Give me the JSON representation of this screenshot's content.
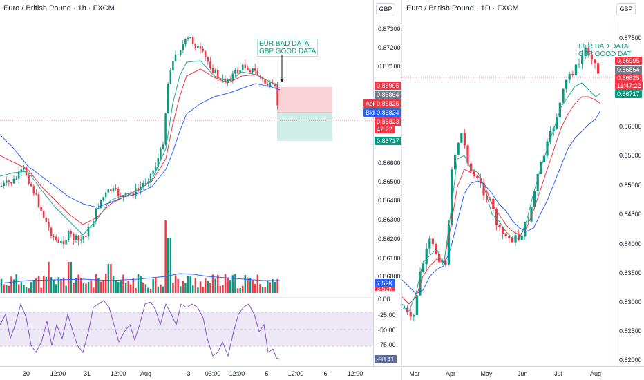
{
  "left_pane": {
    "title": "Euro / British Pound · 1h · FXCM",
    "currency": "GBP",
    "price_ticks": [
      "0.87300",
      "0.87200",
      "0.87100",
      "0.86600",
      "0.86500",
      "0.86400",
      "0.86300",
      "0.86200",
      "0.86100",
      "0.86000"
    ],
    "osc_ticks": [
      "0.00",
      "-25.00",
      "-50.00",
      "-75.00"
    ],
    "time_ticks": [
      "30",
      "12:00",
      "31",
      "12:00",
      "Aug",
      "3",
      "03:00",
      "12:00",
      "5",
      "12:00",
      "6",
      "12:00"
    ],
    "tags": {
      "target": "0.86995",
      "last_close": "0.86864",
      "ask_label": "Ask",
      "ask": "0.86826",
      "bid_label": "Bid",
      "bid": "0.86824",
      "current": "0.86823",
      "countdown": "47:22",
      "stop": "0.86717",
      "volume_a": "7.52K",
      "volume_b": "3.52K",
      "oscillator": "-98.41"
    },
    "annotation": [
      "EUR BAD DATA",
      "GBP GOOD DATA"
    ]
  },
  "right_pane": {
    "title": "Euro / British Pound · 1D · FXCM",
    "currency": "GBP",
    "price_ticks": [
      "0.87500",
      "0.86000",
      "0.85500",
      "0.85000",
      "0.84500",
      "0.84000",
      "0.83500",
      "0.83000",
      "0.82500",
      "0.82000"
    ],
    "time_ticks": [
      "Mar",
      "Apr",
      "May",
      "Jun",
      "Jul",
      "Aug"
    ],
    "tags": {
      "target": "0.86995",
      "last_close": "0.86864",
      "current": "0.86825",
      "countdown": "11:47:22",
      "stop": "0.86717"
    },
    "annotation": [
      "EUR BAD DATA",
      "GBP GOOD DAT"
    ]
  },
  "colors": {
    "up": "#089981",
    "down": "#f23645",
    "ema_green": "#26a69a",
    "ema_red": "#f23645",
    "ema_blue": "#2962ff",
    "osc_line": "#7e57c2",
    "osc_band": "#ede7f6",
    "risk_zone": "#fad3d6",
    "reward_zone": "#cfeee6",
    "bid": "#2962ff",
    "neutral_tag": "#787b86"
  }
}
